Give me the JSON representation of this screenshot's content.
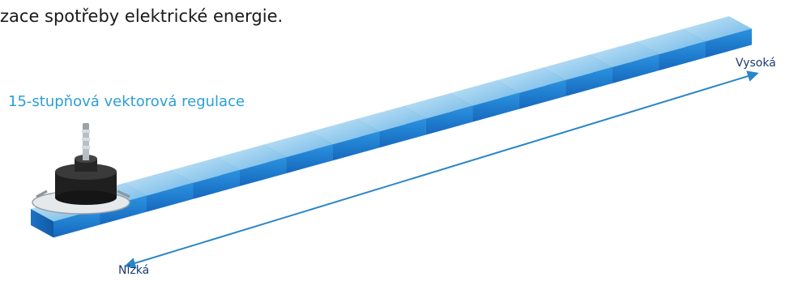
{
  "header_text": "zace spotřeby elektrické energie.",
  "diagram": {
    "title": "15-stupňová vektorová regulace",
    "high_label": "Vysoká",
    "low_label": "Nízká",
    "step_count": 15
  },
  "colors": {
    "step_top": "#9fd2f0",
    "step_riser": "#1b7fd3",
    "step_side": "#1566b5",
    "arrow": "#2a86c8",
    "title": "#2b9fd6",
    "label": "#1d3a73"
  },
  "icons": [
    "motor-icon"
  ]
}
